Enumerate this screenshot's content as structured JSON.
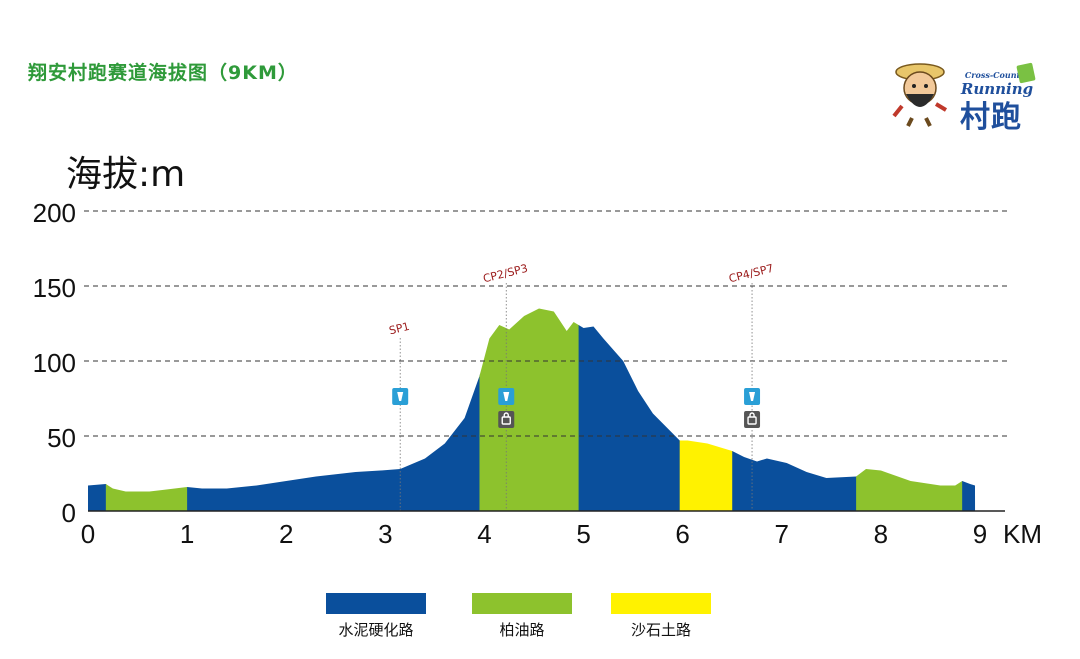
{
  "chart_data": {
    "type": "area",
    "title": "翔安村跑赛道海拔图（9KM）",
    "ylabel": "海拔:m",
    "xlabel": "KM",
    "xlim": [
      0,
      9
    ],
    "ylim": [
      0,
      200
    ],
    "y_ticks": [
      "0",
      "50",
      "100",
      "150",
      "200"
    ],
    "x_ticks": [
      "0",
      "1",
      "2",
      "3",
      "4",
      "5",
      "6",
      "7",
      "8",
      "9"
    ],
    "grid": "horizontal-dashed",
    "profile": {
      "x": [
        0,
        0.18,
        0.25,
        0.38,
        0.62,
        0.75,
        1.0,
        1.15,
        1.4,
        1.7,
        2.0,
        2.3,
        2.7,
        2.95,
        3.15,
        3.4,
        3.6,
        3.8,
        3.95,
        4.05,
        4.15,
        4.25,
        4.4,
        4.55,
        4.7,
        4.75,
        4.83,
        4.9,
        5.0,
        5.1,
        5.2,
        5.4,
        5.55,
        5.7,
        5.85,
        5.97,
        6.05,
        6.25,
        6.5,
        6.62,
        6.75,
        6.85,
        7.05,
        7.25,
        7.45,
        7.75,
        7.85,
        8.0,
        8.3,
        8.6,
        8.75,
        8.82,
        8.9,
        8.95
      ],
      "y": [
        17,
        18,
        15,
        13,
        13,
        14,
        16,
        15,
        15,
        17,
        20,
        23,
        26,
        27,
        28,
        35,
        45,
        62,
        90,
        115,
        124,
        121,
        130,
        135,
        133,
        128,
        120,
        126,
        122,
        123,
        115,
        100,
        80,
        65,
        55,
        47,
        47,
        45,
        40,
        36,
        33,
        35,
        32,
        26,
        22,
        23,
        28,
        27,
        20,
        17,
        17,
        20,
        18,
        17
      ]
    },
    "surface_segments": [
      {
        "x": [
          0,
          0.18
        ],
        "surface": 0
      },
      {
        "x": [
          0.18,
          1.0
        ],
        "surface": 1
      },
      {
        "x": [
          1.0,
          3.95
        ],
        "surface": 0
      },
      {
        "x": [
          3.95,
          4.95
        ],
        "surface": 1
      },
      {
        "x": [
          4.95,
          5.97
        ],
        "surface": 0
      },
      {
        "x": [
          5.97,
          6.5
        ],
        "surface": 2
      },
      {
        "x": [
          6.5,
          7.75
        ],
        "surface": 0
      },
      {
        "x": [
          7.75,
          8.82
        ],
        "surface": 1
      },
      {
        "x": [
          8.82,
          8.95
        ],
        "surface": 0
      }
    ],
    "legend": [
      {
        "label": "水泥硬化路",
        "color": "#0a4f9c"
      },
      {
        "label": "柏油路",
        "color": "#8dc22d"
      },
      {
        "label": "沙石土路",
        "color": "#fff200"
      }
    ],
    "legend_position": "bottom-center",
    "markers": [
      {
        "label": "SP1",
        "x": 3.15,
        "icons": [
          "water-station"
        ]
      },
      {
        "label": "CP2/SP3",
        "x": 4.22,
        "icons": [
          "water-station",
          "checkpoint"
        ]
      },
      {
        "label": "CP4/SP7",
        "x": 6.7,
        "icons": [
          "water-station",
          "checkpoint"
        ]
      }
    ]
  },
  "logo": {
    "en_top": "Cross-Country",
    "en_main": "Running",
    "cn": "村跑"
  }
}
